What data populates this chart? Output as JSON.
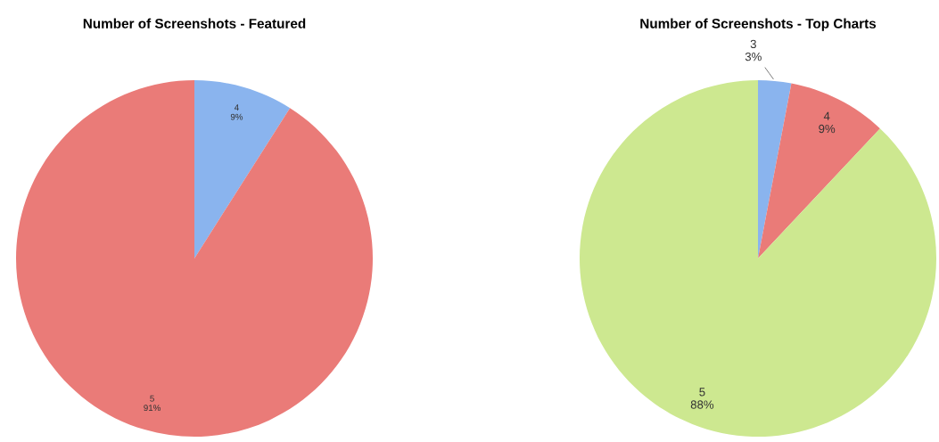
{
  "chart_data": [
    {
      "type": "pie",
      "title": "Number of Screenshots - Featured",
      "categories": [
        "4",
        "5"
      ],
      "values": [
        9,
        91
      ],
      "value_labels": [
        "9%",
        "91%"
      ],
      "colors": [
        "#8ab4ee",
        "#ea7b78"
      ]
    },
    {
      "type": "pie",
      "title": "Number of Screenshots - Top Charts",
      "categories": [
        "3",
        "4",
        "5"
      ],
      "values": [
        3,
        9,
        88
      ],
      "value_labels": [
        "3%",
        "9%",
        "88%"
      ],
      "colors": [
        "#8ab4ee",
        "#ea7b78",
        "#cde890"
      ]
    }
  ]
}
